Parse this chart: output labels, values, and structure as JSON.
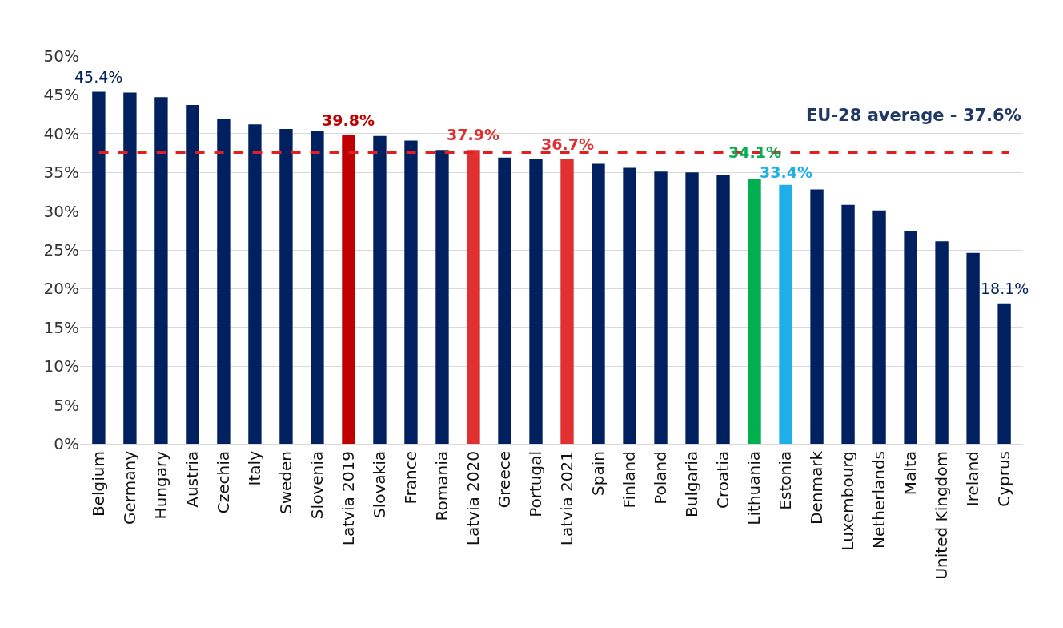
{
  "chart_data": {
    "type": "bar",
    "categories": [
      "Belgium",
      "Germany",
      "Hungary",
      "Austria",
      "Czechia",
      "Italy",
      "Sweden",
      "Slovenia",
      "Latvia 2019",
      "Slovakia",
      "France",
      "Romania",
      "Latvia 2020",
      "Greece",
      "Portugal",
      "Latvia 2021",
      "Spain",
      "Finland",
      "Poland",
      "Bulgaria",
      "Croatia",
      "Lithuania",
      "Estonia",
      "Denmark",
      "Luxembourg",
      "Netherlands",
      "Malta",
      "United Kingdom",
      "Ireland",
      "Cyprus"
    ],
    "values": [
      45.4,
      45.3,
      44.7,
      43.7,
      41.9,
      41.2,
      40.6,
      40.4,
      39.8,
      39.7,
      39.1,
      37.9,
      37.9,
      36.9,
      36.7,
      36.7,
      36.1,
      35.6,
      35.1,
      35.0,
      34.6,
      34.1,
      33.4,
      32.8,
      30.8,
      30.1,
      27.4,
      26.1,
      24.6,
      18.1
    ],
    "colors": [
      "#002060",
      "#002060",
      "#002060",
      "#002060",
      "#002060",
      "#002060",
      "#002060",
      "#002060",
      "#c00000",
      "#002060",
      "#002060",
      "#002060",
      "#e03030",
      "#002060",
      "#002060",
      "#e03030",
      "#002060",
      "#002060",
      "#002060",
      "#002060",
      "#002060",
      "#00b050",
      "#1eaee8",
      "#002060",
      "#002060",
      "#002060",
      "#002060",
      "#002060",
      "#002060",
      "#002060"
    ],
    "value_labels": [
      "45.4%",
      null,
      null,
      null,
      null,
      null,
      null,
      null,
      "39.8%",
      null,
      null,
      null,
      "37.9%",
      null,
      null,
      "36.7%",
      null,
      null,
      null,
      null,
      null,
      "34.1%",
      "33.4%",
      null,
      null,
      null,
      null,
      null,
      null,
      "18.1%"
    ],
    "ylim": [
      0,
      50
    ],
    "yticks": [
      {
        "value": 0,
        "label": "0%"
      },
      {
        "value": 5,
        "label": "5%"
      },
      {
        "value": 10,
        "label": "10%"
      },
      {
        "value": 15,
        "label": "15%"
      },
      {
        "value": 20,
        "label": "20%"
      },
      {
        "value": 25,
        "label": "25%"
      },
      {
        "value": 30,
        "label": "30%"
      },
      {
        "value": 35,
        "label": "35%"
      },
      {
        "value": 40,
        "label": "40%"
      },
      {
        "value": 45,
        "label": "45%"
      },
      {
        "value": 50,
        "label": "50%"
      }
    ],
    "ref_lines": [
      {
        "axis": "y",
        "value": 37.6,
        "label": "EU-28 average - 37.6%",
        "color": "#e02020",
        "line_style": "dashed"
      }
    ],
    "grid": "y"
  }
}
